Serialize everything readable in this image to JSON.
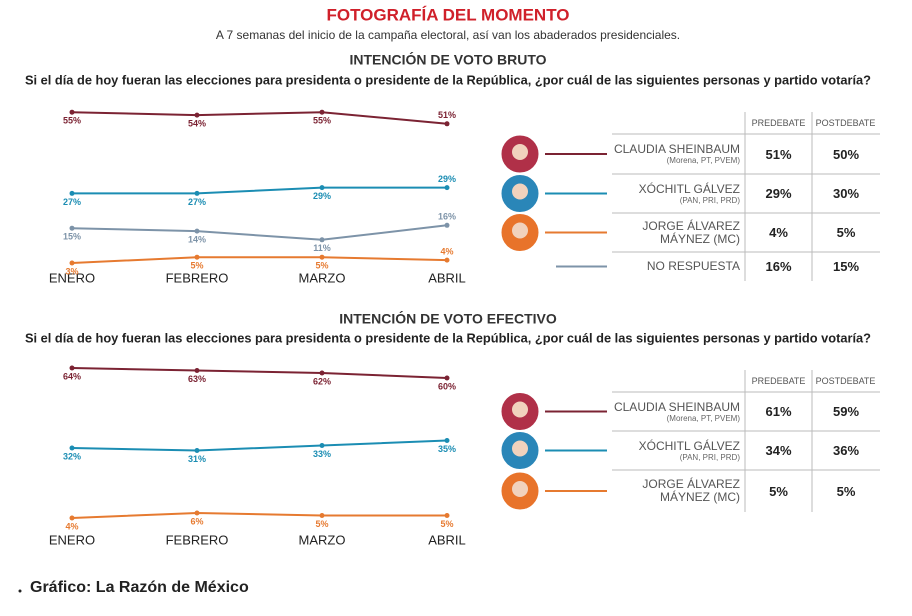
{
  "title": "FOTOGRAFÍA DEL MOMENTO",
  "subtitle": "A 7 semanas del inicio de la campaña electoral, así van los abaderados presidenciales.",
  "source": "Gráfico: La Razón de México",
  "chart_data": [
    {
      "type": "line",
      "title": "INTENCIÓN DE VOTO BRUTO",
      "subtitle": "Si el día de hoy fueran las elecciones para presidenta o presidente de la República, ¿por cuál de las siguientes personas y partido votaría?",
      "categories": [
        "ENERO",
        "FEBRERO",
        "MARZO",
        "ABRIL"
      ],
      "series": [
        {
          "name": "CLAUDIA SHEINBAUM",
          "color": "#7b2333",
          "values": [
            55,
            54,
            55,
            51
          ],
          "value_labels": [
            "55%",
            "54%",
            "55%",
            "51%"
          ]
        },
        {
          "name": "XÓCHITL GÁLVEZ",
          "color": "#1b8db3",
          "values": [
            27,
            27,
            29,
            29
          ],
          "value_labels": [
            "27%",
            "27%",
            "29%",
            "29%"
          ]
        },
        {
          "name": "JORGE ÁLVAREZ MÁYNEZ",
          "color": "#e67a30",
          "values": [
            3,
            5,
            5,
            4
          ],
          "value_labels": [
            "3%",
            "5%",
            "5%",
            "4%"
          ]
        },
        {
          "name": "NO RESPUESTA",
          "color": "#7d93a8",
          "values": [
            15,
            14,
            11,
            16
          ],
          "value_labels": [
            "15%",
            "14%",
            "11%",
            "16%"
          ]
        }
      ],
      "table": {
        "columns": [
          "PREDEBATE",
          "POSTDEBATE"
        ],
        "rows": [
          {
            "party": "(Morena, PT, PVEM)",
            "predebate": "51%",
            "postdebate": "50%"
          },
          {
            "party": "(PAN, PRI, PRD)",
            "predebate": "29%",
            "postdebate": "30%"
          },
          {
            "party": "(MC)",
            "predebate": "4%",
            "postdebate": "5%"
          },
          {
            "predebate": "16%",
            "postdebate": "15%"
          }
        ]
      }
    },
    {
      "type": "line",
      "title": "INTENCIÓN DE VOTO EFECTIVO",
      "subtitle": "Si el día de hoy fueran las elecciones para presidenta o presidente de la República, ¿por cuál de las siguientes personas y partido votaría?",
      "categories": [
        "ENERO",
        "FEBRERO",
        "MARZO",
        "ABRIL"
      ],
      "series": [
        {
          "name": "CLAUDIA SHEINBAUM",
          "color": "#7b2333",
          "values": [
            64,
            63,
            62,
            60
          ],
          "value_labels": [
            "64%",
            "63%",
            "62%",
            "60%"
          ]
        },
        {
          "name": "XÓCHITL GÁLVEZ",
          "color": "#1b8db3",
          "values": [
            32,
            31,
            33,
            35
          ],
          "value_labels": [
            "32%",
            "31%",
            "33%",
            "35%"
          ]
        },
        {
          "name": "JORGE ÁLVAREZ MÁYNEZ",
          "color": "#e67a30",
          "values": [
            4,
            6,
            5,
            5
          ],
          "value_labels": [
            "4%",
            "6%",
            "5%",
            "5%"
          ]
        }
      ],
      "table": {
        "columns": [
          "PREDEBATE",
          "POSTDEBATE"
        ],
        "rows": [
          {
            "party": "(Morena, PT, PVEM)",
            "predebate": "61%",
            "postdebate": "59%"
          },
          {
            "party": "(PAN, PRI, PRD)",
            "predebate": "34%",
            "postdebate": "36%"
          },
          {
            "party": "(MC)",
            "predebate": "5%",
            "postdebate": "5%"
          }
        ]
      }
    }
  ]
}
